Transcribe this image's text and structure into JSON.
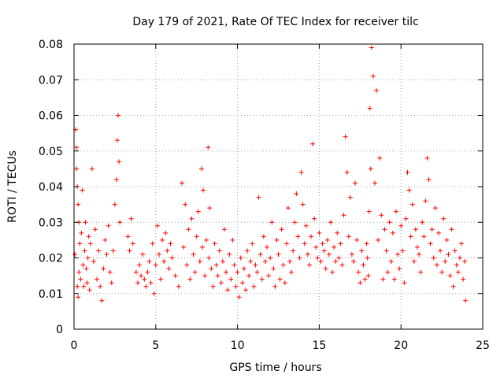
{
  "chart_data": {
    "type": "scatter",
    "title": "Day 179 of 2021, Rate Of TEC Index for receiver tilc",
    "xlabel": "GPS time / hours",
    "ylabel": "ROTI / TECUs",
    "xlim": [
      0,
      25
    ],
    "ylim": [
      0,
      0.08
    ],
    "x_ticks": [
      "0",
      "5",
      "10",
      "15",
      "20",
      "25"
    ],
    "y_ticks": [
      "0",
      "0.01",
      "0.02",
      "0.03",
      "0.04",
      "0.05",
      "0.06",
      "0.07",
      "0.08"
    ],
    "grid": true,
    "marker": "plus",
    "color": "#ff0000",
    "series": [
      {
        "x": [
          0.05,
          0.1,
          0.15,
          0.15,
          0.2,
          0.2,
          0.25,
          0.25,
          0.3,
          0.3,
          0.35,
          0.4,
          0.45,
          0.5,
          0.55,
          0.6,
          0.65,
          0.7,
          0.75,
          0.8,
          0.85,
          0.9,
          0.95,
          1.0,
          1.1,
          1.2,
          1.3,
          1.4,
          1.5,
          1.6,
          1.7,
          1.8,
          1.9,
          2.0,
          2.1,
          2.2,
          2.3,
          2.4,
          2.5,
          2.6,
          2.65,
          2.7,
          2.75,
          2.8,
          3.3,
          3.4,
          3.5,
          3.6,
          3.8,
          3.9,
          4.0,
          4.1,
          4.2,
          4.3,
          4.4,
          4.5,
          4.6,
          4.7,
          4.8,
          4.9,
          5.0,
          5.1,
          5.2,
          5.3,
          5.4,
          5.5,
          5.6,
          5.7,
          5.8,
          5.9,
          6.0,
          6.2,
          6.4,
          6.6,
          6.7,
          6.8,
          6.9,
          7.0,
          7.1,
          7.2,
          7.3,
          7.4,
          7.5,
          7.6,
          7.7,
          7.8,
          7.85,
          7.9,
          8.0,
          8.1,
          8.2,
          8.25,
          8.3,
          8.4,
          8.5,
          8.6,
          8.7,
          8.8,
          8.9,
          9.0,
          9.1,
          9.2,
          9.3,
          9.4,
          9.5,
          9.6,
          9.7,
          9.8,
          9.9,
          10.0,
          10.1,
          10.2,
          10.3,
          10.4,
          10.5,
          10.6,
          10.7,
          10.8,
          10.9,
          11.0,
          11.1,
          11.2,
          11.3,
          11.4,
          11.5,
          11.6,
          11.7,
          11.8,
          11.9,
          12.0,
          12.1,
          12.2,
          12.3,
          12.4,
          12.5,
          12.6,
          12.7,
          12.8,
          12.9,
          13.0,
          13.1,
          13.2,
          13.3,
          13.4,
          13.5,
          13.6,
          13.7,
          13.8,
          13.9,
          14.0,
          14.1,
          14.2,
          14.3,
          14.4,
          14.5,
          14.6,
          14.7,
          14.8,
          14.9,
          15.0,
          15.1,
          15.2,
          15.3,
          15.4,
          15.5,
          15.6,
          15.7,
          15.8,
          15.9,
          16.0,
          16.1,
          16.2,
          16.3,
          16.4,
          16.5,
          16.6,
          16.7,
          16.8,
          16.9,
          17.0,
          17.1,
          17.2,
          17.3,
          17.4,
          17.5,
          17.6,
          17.7,
          17.8,
          17.9,
          17.95,
          18.0,
          18.05,
          18.1,
          18.15,
          18.2,
          18.3,
          18.4,
          18.5,
          18.6,
          18.7,
          18.8,
          18.9,
          19.0,
          19.1,
          19.2,
          19.3,
          19.4,
          19.5,
          19.6,
          19.7,
          19.8,
          19.9,
          20.0,
          20.1,
          20.2,
          20.3,
          20.4,
          20.5,
          20.6,
          20.7,
          20.8,
          20.9,
          21.0,
          21.1,
          21.2,
          21.3,
          21.4,
          21.5,
          21.6,
          21.7,
          21.8,
          21.9,
          22.0,
          22.1,
          22.2,
          22.3,
          22.4,
          22.5,
          22.6,
          22.7,
          22.8,
          22.9,
          23.0,
          23.1,
          23.2,
          23.3,
          23.4,
          23.5,
          23.6,
          23.7,
          23.8,
          23.9,
          23.95
        ],
        "y": [
          0.021,
          0.056,
          0.051,
          0.045,
          0.04,
          0.012,
          0.035,
          0.009,
          0.03,
          0.016,
          0.024,
          0.014,
          0.027,
          0.039,
          0.018,
          0.012,
          0.022,
          0.03,
          0.017,
          0.013,
          0.02,
          0.026,
          0.011,
          0.024,
          0.045,
          0.019,
          0.028,
          0.014,
          0.022,
          0.012,
          0.008,
          0.017,
          0.025,
          0.021,
          0.029,
          0.016,
          0.013,
          0.022,
          0.035,
          0.042,
          0.053,
          0.06,
          0.047,
          0.03,
          0.026,
          0.022,
          0.031,
          0.024,
          0.016,
          0.013,
          0.018,
          0.015,
          0.021,
          0.014,
          0.012,
          0.016,
          0.019,
          0.013,
          0.024,
          0.01,
          0.018,
          0.029,
          0.021,
          0.014,
          0.025,
          0.019,
          0.027,
          0.022,
          0.017,
          0.024,
          0.02,
          0.015,
          0.012,
          0.041,
          0.023,
          0.035,
          0.018,
          0.028,
          0.014,
          0.031,
          0.021,
          0.016,
          0.026,
          0.033,
          0.019,
          0.045,
          0.023,
          0.039,
          0.015,
          0.025,
          0.051,
          0.02,
          0.034,
          0.017,
          0.012,
          0.024,
          0.018,
          0.015,
          0.022,
          0.013,
          0.019,
          0.028,
          0.016,
          0.011,
          0.021,
          0.014,
          0.025,
          0.018,
          0.012,
          0.016,
          0.009,
          0.02,
          0.013,
          0.017,
          0.011,
          0.022,
          0.015,
          0.019,
          0.024,
          0.012,
          0.018,
          0.016,
          0.037,
          0.021,
          0.014,
          0.026,
          0.019,
          0.023,
          0.015,
          0.02,
          0.03,
          0.017,
          0.012,
          0.025,
          0.021,
          0.014,
          0.028,
          0.018,
          0.013,
          0.024,
          0.034,
          0.019,
          0.016,
          0.022,
          0.03,
          0.038,
          0.026,
          0.02,
          0.044,
          0.035,
          0.024,
          0.029,
          0.021,
          0.018,
          0.026,
          0.052,
          0.031,
          0.023,
          0.02,
          0.027,
          0.019,
          0.024,
          0.022,
          0.017,
          0.025,
          0.021,
          0.03,
          0.016,
          0.023,
          0.019,
          0.027,
          0.02,
          0.024,
          0.018,
          0.032,
          0.054,
          0.044,
          0.026,
          0.037,
          0.021,
          0.019,
          0.041,
          0.025,
          0.016,
          0.013,
          0.022,
          0.018,
          0.014,
          0.024,
          0.02,
          0.015,
          0.033,
          0.062,
          0.045,
          0.079,
          0.071,
          0.041,
          0.067,
          0.025,
          0.048,
          0.032,
          0.014,
          0.028,
          0.022,
          0.016,
          0.03,
          0.019,
          0.027,
          0.014,
          0.033,
          0.021,
          0.017,
          0.029,
          0.022,
          0.013,
          0.031,
          0.044,
          0.039,
          0.026,
          0.035,
          0.019,
          0.028,
          0.023,
          0.021,
          0.016,
          0.03,
          0.026,
          0.036,
          0.048,
          0.042,
          0.024,
          0.028,
          0.02,
          0.034,
          0.018,
          0.027,
          0.022,
          0.016,
          0.031,
          0.019,
          0.025,
          0.021,
          0.015,
          0.028,
          0.012,
          0.022,
          0.018,
          0.016,
          0.02,
          0.024,
          0.014,
          0.019,
          0.008
        ]
      }
    ]
  }
}
